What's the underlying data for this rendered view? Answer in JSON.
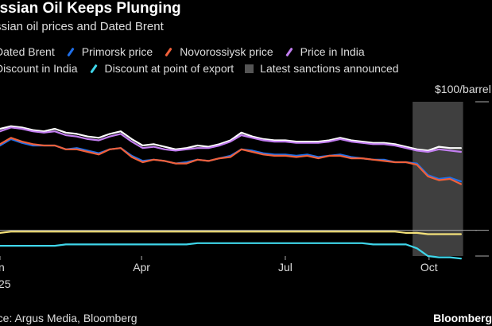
{
  "header": {
    "title": "ussian Oil Keeps Plunging",
    "subtitle": "ssian oil prices and Dated Brent"
  },
  "legend": {
    "row1": [
      {
        "label": "Dated Brent",
        "color": "#ffffff",
        "kind": "line",
        "partial": true
      },
      {
        "label": "Primorsk price",
        "color": "#1f6fe8",
        "kind": "line"
      },
      {
        "label": "Novorossiysk price",
        "color": "#f0603a",
        "kind": "line"
      },
      {
        "label": "Price in India",
        "color": "#c27ef0",
        "kind": "line"
      }
    ],
    "row2": [
      {
        "label": "Discount in India",
        "color": "#f5e27a",
        "kind": "line",
        "partial": true
      },
      {
        "label": "Discount at point of export",
        "color": "#3fd6ea",
        "kind": "line"
      },
      {
        "label": "Latest sanctions announced",
        "color": "#555555",
        "kind": "box"
      }
    ]
  },
  "footer": {
    "source": "rce: Argus Media, Bloomberg",
    "brand": "Bloomberg"
  },
  "chart_data": {
    "type": "line",
    "x_unit": "week index (Jan 2025 start, ~43 weeks)",
    "x": [
      0,
      1,
      2,
      3,
      4,
      5,
      6,
      7,
      8,
      9,
      10,
      11,
      12,
      13,
      14,
      15,
      16,
      17,
      18,
      19,
      20,
      21,
      22,
      23,
      24,
      25,
      26,
      27,
      28,
      29,
      30,
      31,
      32,
      33,
      34,
      35,
      36,
      37,
      38,
      39,
      40,
      41,
      42
    ],
    "x_ticks": [
      {
        "label": "n",
        "at": 0
      },
      {
        "label": "Apr",
        "at": 12.9
      },
      {
        "label": "Jul",
        "at": 26
      },
      {
        "label": "Oct",
        "at": 39.1
      }
    ],
    "x_year_label": "25",
    "y_unit_label": "$100/barrel",
    "ylim": [
      -20,
      100
    ],
    "y_zero": 0,
    "series": [
      {
        "name": "Dated Brent",
        "color": "#ffffff",
        "values": [
          79,
          81,
          80,
          78,
          77,
          79,
          76,
          75,
          73,
          72,
          75,
          77,
          71,
          66,
          67,
          65,
          63,
          64,
          66,
          65,
          67,
          70,
          76,
          73,
          71,
          70,
          70,
          69,
          69,
          69,
          70,
          72,
          70,
          69,
          68,
          68,
          67,
          65,
          63,
          62,
          65,
          64,
          64
        ]
      },
      {
        "name": "Price in India",
        "color": "#c27ef0",
        "values": [
          77,
          80,
          79,
          77,
          76,
          77,
          74,
          73,
          71,
          70,
          73,
          75,
          69,
          64,
          65,
          63,
          62,
          63,
          64,
          64,
          66,
          69,
          74,
          72,
          70,
          69,
          69,
          68,
          68,
          68,
          69,
          71,
          69,
          68,
          67,
          67,
          66,
          64,
          62,
          61,
          63,
          62,
          61
        ]
      },
      {
        "name": "Primorsk price",
        "color": "#1f6fe8",
        "values": [
          66,
          71,
          68,
          66,
          66,
          66,
          63,
          64,
          62,
          60,
          63,
          64,
          58,
          54,
          55,
          54,
          52,
          53,
          55,
          54,
          56,
          58,
          63,
          62,
          60,
          59,
          59,
          58,
          59,
          57,
          58,
          59,
          57,
          56,
          55,
          55,
          53,
          53,
          52,
          43,
          40,
          41,
          38
        ]
      },
      {
        "name": "Novorossiysk price",
        "color": "#f0603a",
        "values": [
          67,
          72,
          69,
          67,
          66,
          66,
          63,
          63,
          61,
          59,
          63,
          64,
          57,
          53,
          55,
          54,
          52,
          52,
          55,
          54,
          56,
          57,
          63,
          61,
          59,
          58,
          58,
          57,
          58,
          56,
          58,
          58,
          56,
          56,
          55,
          54,
          53,
          53,
          51,
          42,
          39,
          40,
          36
        ]
      },
      {
        "name": "Discount in India",
        "color": "#f5e27a",
        "values": [
          -2,
          -1,
          -1,
          -1,
          -1,
          -1,
          -1,
          -1,
          -1,
          -1,
          -1,
          -1,
          -1,
          -1,
          -1,
          -1,
          -1,
          -1,
          -1,
          -1,
          -1,
          -1,
          -1,
          -1,
          -1,
          -1,
          -1,
          -1,
          -1,
          -1,
          -1,
          -1,
          -1,
          -1,
          -1,
          -1,
          -1,
          -2,
          -2,
          -3,
          -3,
          -3,
          -3
        ]
      },
      {
        "name": "Discount at point of export",
        "color": "#3fd6ea",
        "values": [
          -12,
          -12,
          -12,
          -12,
          -12,
          -12,
          -11,
          -11,
          -11,
          -11,
          -11,
          -11,
          -11,
          -11,
          -11,
          -11,
          -11,
          -11,
          -10,
          -10,
          -10,
          -10,
          -10,
          -10,
          -10,
          -10,
          -10,
          -10,
          -10,
          -10,
          -10,
          -10,
          -10,
          -10,
          -11,
          -11,
          -11,
          -11,
          -14,
          -20,
          -21,
          -21,
          -22
        ]
      }
    ],
    "shaded_region": {
      "label": "Latest sanctions announced",
      "x_start": 37.6,
      "x_end": 42.2
    }
  }
}
